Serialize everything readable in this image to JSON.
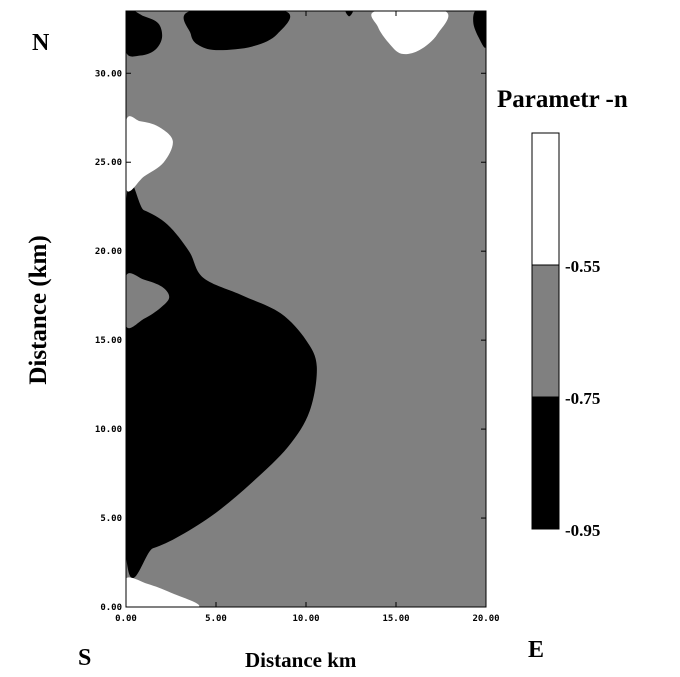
{
  "chart_data": {
    "type": "contour",
    "title": "",
    "xlabel": "Distance km",
    "ylabel": "Distance (km)",
    "xlim": [
      0,
      20
    ],
    "ylim": [
      0,
      33.5
    ],
    "x_ticks": [
      "0.00",
      "5.00",
      "10.00",
      "15.00",
      "20.00"
    ],
    "y_ticks": [
      "0.00",
      "5.00",
      "10.00",
      "15.00",
      "20.00",
      "25.00",
      "30.00"
    ],
    "x_tick_values": [
      0,
      5,
      10,
      15,
      20
    ],
    "y_tick_values": [
      0,
      5,
      10,
      15,
      20,
      25,
      30
    ],
    "direction_labels": {
      "north": "N",
      "south": "S",
      "east": "E"
    },
    "background_value": "-0.75 to -0.55",
    "legend": {
      "title": "Parametr -n",
      "levels": [
        "-0.55",
        "-0.75",
        "-0.95"
      ],
      "bands": [
        {
          "range": "above -0.55",
          "color": "#ffffff"
        },
        {
          "range": "-0.75 to -0.55",
          "color": "#808080"
        },
        {
          "range": "-0.95 to -0.75",
          "color": "#000000"
        }
      ]
    },
    "colors": {
      "low": "#000000",
      "mid": "#808080",
      "high": "#ffffff"
    },
    "regions": [
      {
        "name": "black-main-lobe",
        "level": "low",
        "points": [
          [
            0,
            3
          ],
          [
            1.5,
            3.3
          ],
          [
            3,
            4
          ],
          [
            5,
            5.3
          ],
          [
            7,
            7
          ],
          [
            9,
            9
          ],
          [
            10.2,
            11
          ],
          [
            10.6,
            13.5
          ],
          [
            10,
            15
          ],
          [
            8.6,
            16.5
          ],
          [
            6.5,
            17.5
          ],
          [
            4.3,
            18.5
          ],
          [
            3.5,
            20
          ],
          [
            2.3,
            21.5
          ],
          [
            1,
            22.3
          ],
          [
            0,
            22.5
          ]
        ]
      },
      {
        "name": "gray-inner-island",
        "level": "mid",
        "points": [
          [
            0,
            15.8
          ],
          [
            1,
            16.2
          ],
          [
            1.9,
            16.8
          ],
          [
            2.4,
            17.4
          ],
          [
            2,
            18
          ],
          [
            1,
            18.4
          ],
          [
            0,
            18.6
          ]
        ]
      },
      {
        "name": "white-left-blob",
        "level": "high",
        "points": [
          [
            0,
            23.5
          ],
          [
            1,
            24.2
          ],
          [
            2.1,
            25
          ],
          [
            2.6,
            26.2
          ],
          [
            1.8,
            27
          ],
          [
            0.8,
            27.3
          ],
          [
            0,
            27.3
          ]
        ]
      },
      {
        "name": "white-bottom-corner",
        "level": "high",
        "points": [
          [
            0,
            0
          ],
          [
            4,
            0
          ],
          [
            2.5,
            0.8
          ],
          [
            1.2,
            1.3
          ],
          [
            0,
            1.6
          ]
        ]
      },
      {
        "name": "black-top-left",
        "level": "low",
        "points": [
          [
            0,
            33.5
          ],
          [
            1,
            33.2
          ],
          [
            1.8,
            32.8
          ],
          [
            2,
            32
          ],
          [
            1.6,
            31.3
          ],
          [
            0.8,
            31
          ],
          [
            0,
            31.2
          ]
        ]
      },
      {
        "name": "black-top-center",
        "level": "low",
        "points": [
          [
            3.6,
            33.5
          ],
          [
            8.8,
            33.5
          ],
          [
            8.4,
            32.2
          ],
          [
            7,
            31.5
          ],
          [
            5,
            31.3
          ],
          [
            4,
            31.6
          ],
          [
            3.6,
            32.2
          ]
        ]
      },
      {
        "name": "black-top-right-edge",
        "level": "low",
        "points": [
          [
            19.4,
            33.5
          ],
          [
            20,
            33.5
          ],
          [
            20,
            31.5
          ],
          [
            19.6,
            32
          ],
          [
            19.3,
            32.8
          ]
        ]
      },
      {
        "name": "black-top-speck",
        "level": "low",
        "points": [
          [
            12.2,
            33.5
          ],
          [
            12.6,
            33.5
          ],
          [
            12.4,
            33.2
          ]
        ]
      },
      {
        "name": "white-top-right",
        "level": "high",
        "points": [
          [
            13.9,
            33.5
          ],
          [
            17.7,
            33.5
          ],
          [
            17.3,
            32.2
          ],
          [
            16.3,
            31.3
          ],
          [
            15.3,
            31.1
          ],
          [
            14.6,
            31.7
          ],
          [
            14,
            32.6
          ]
        ]
      }
    ]
  }
}
